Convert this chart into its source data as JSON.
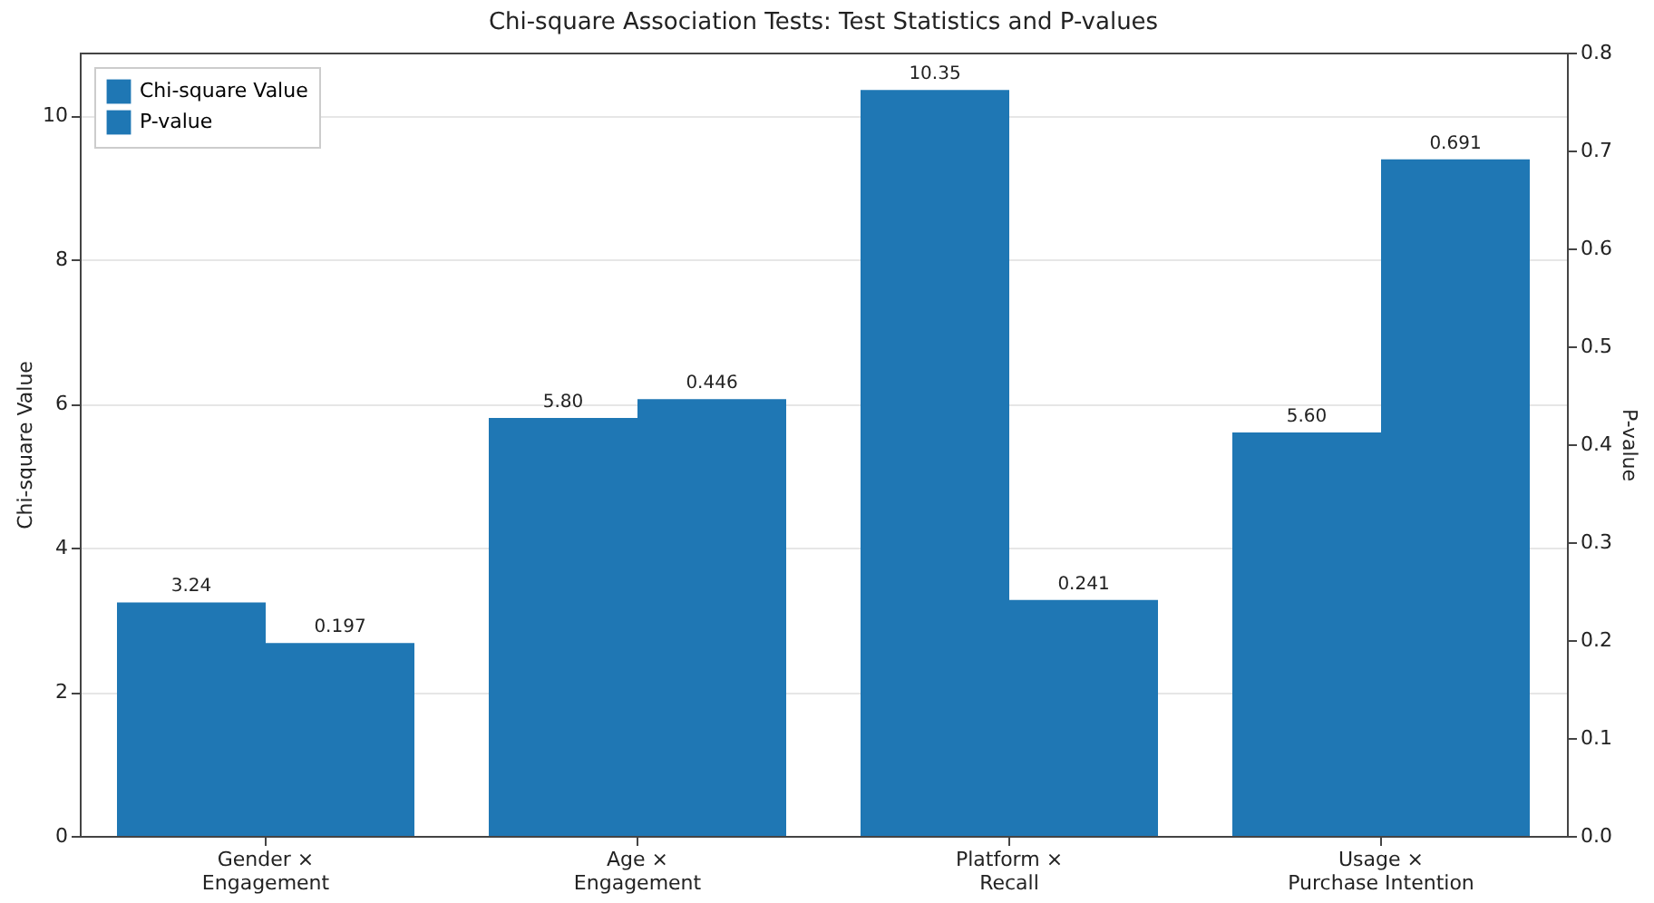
{
  "chart_data": {
    "type": "bar",
    "title": "Chi-square Association Tests: Test Statistics and P-values",
    "categories": [
      "Gender ×\nEngagement",
      "Age ×\nEngagement",
      "Platform ×\nRecall",
      "Usage ×\nPurchase Intention"
    ],
    "series": [
      {
        "name": "Chi-square Value",
        "color": "#1f77b4",
        "values": [
          3.24,
          5.8,
          10.35,
          5.6
        ],
        "value_labels": [
          "3.24",
          "5.80",
          "10.35",
          "5.60"
        ]
      },
      {
        "name": "P-value",
        "color": "#1f77b4",
        "axis": "y2",
        "values": [
          0.197,
          0.446,
          0.241,
          0.691
        ],
        "value_labels": [
          "0.197",
          "0.446",
          "0.241",
          "0.691"
        ]
      }
    ],
    "ylabel": "Chi-square Value",
    "y2label": "P-value",
    "ylim": [
      0,
      10.87
    ],
    "yticks": [
      0,
      2,
      4,
      6,
      8,
      10
    ],
    "y2lim": [
      0,
      0.8
    ],
    "y2ticks": [
      {
        "value": 0,
        "label": "0.0"
      },
      0.1,
      0.2,
      0.3,
      0.4,
      0.5,
      0.6,
      0.7,
      {
        "value": 0.8,
        "label": "0.8"
      }
    ],
    "grid": "y",
    "legend": "top left"
  }
}
